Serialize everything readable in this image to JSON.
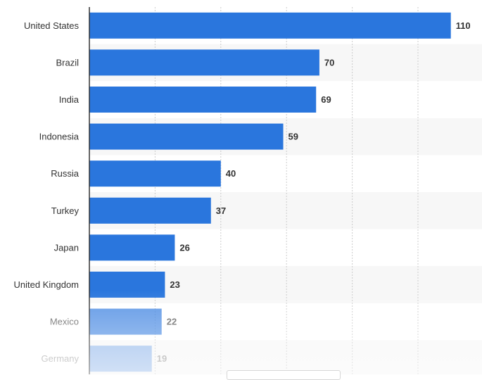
{
  "chart_data": {
    "type": "bar",
    "orientation": "horizontal",
    "categories": [
      "United States",
      "Brazil",
      "India",
      "Indonesia",
      "Russia",
      "Turkey",
      "Japan",
      "United Kingdom",
      "Mexico",
      "Germany"
    ],
    "values": [
      110,
      70,
      69,
      59,
      40,
      37,
      26,
      23,
      22,
      19
    ],
    "title": "",
    "xlabel": "",
    "ylabel": "",
    "xlim": [
      0,
      120
    ],
    "grid": true,
    "bar_color": "#2a76dd",
    "data_labels": true
  }
}
